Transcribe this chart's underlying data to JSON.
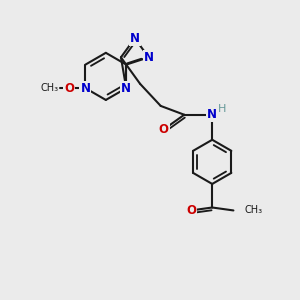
{
  "background_color": "#ebebeb",
  "bond_color": "#1a1a1a",
  "nitrogen_color": "#0000cc",
  "oxygen_color": "#cc0000",
  "hydrogen_color": "#669999",
  "line_width": 1.5,
  "fig_width": 3.0,
  "fig_height": 3.0,
  "dpi": 100,
  "xlim": [
    0,
    10
  ],
  "ylim": [
    0,
    10
  ]
}
